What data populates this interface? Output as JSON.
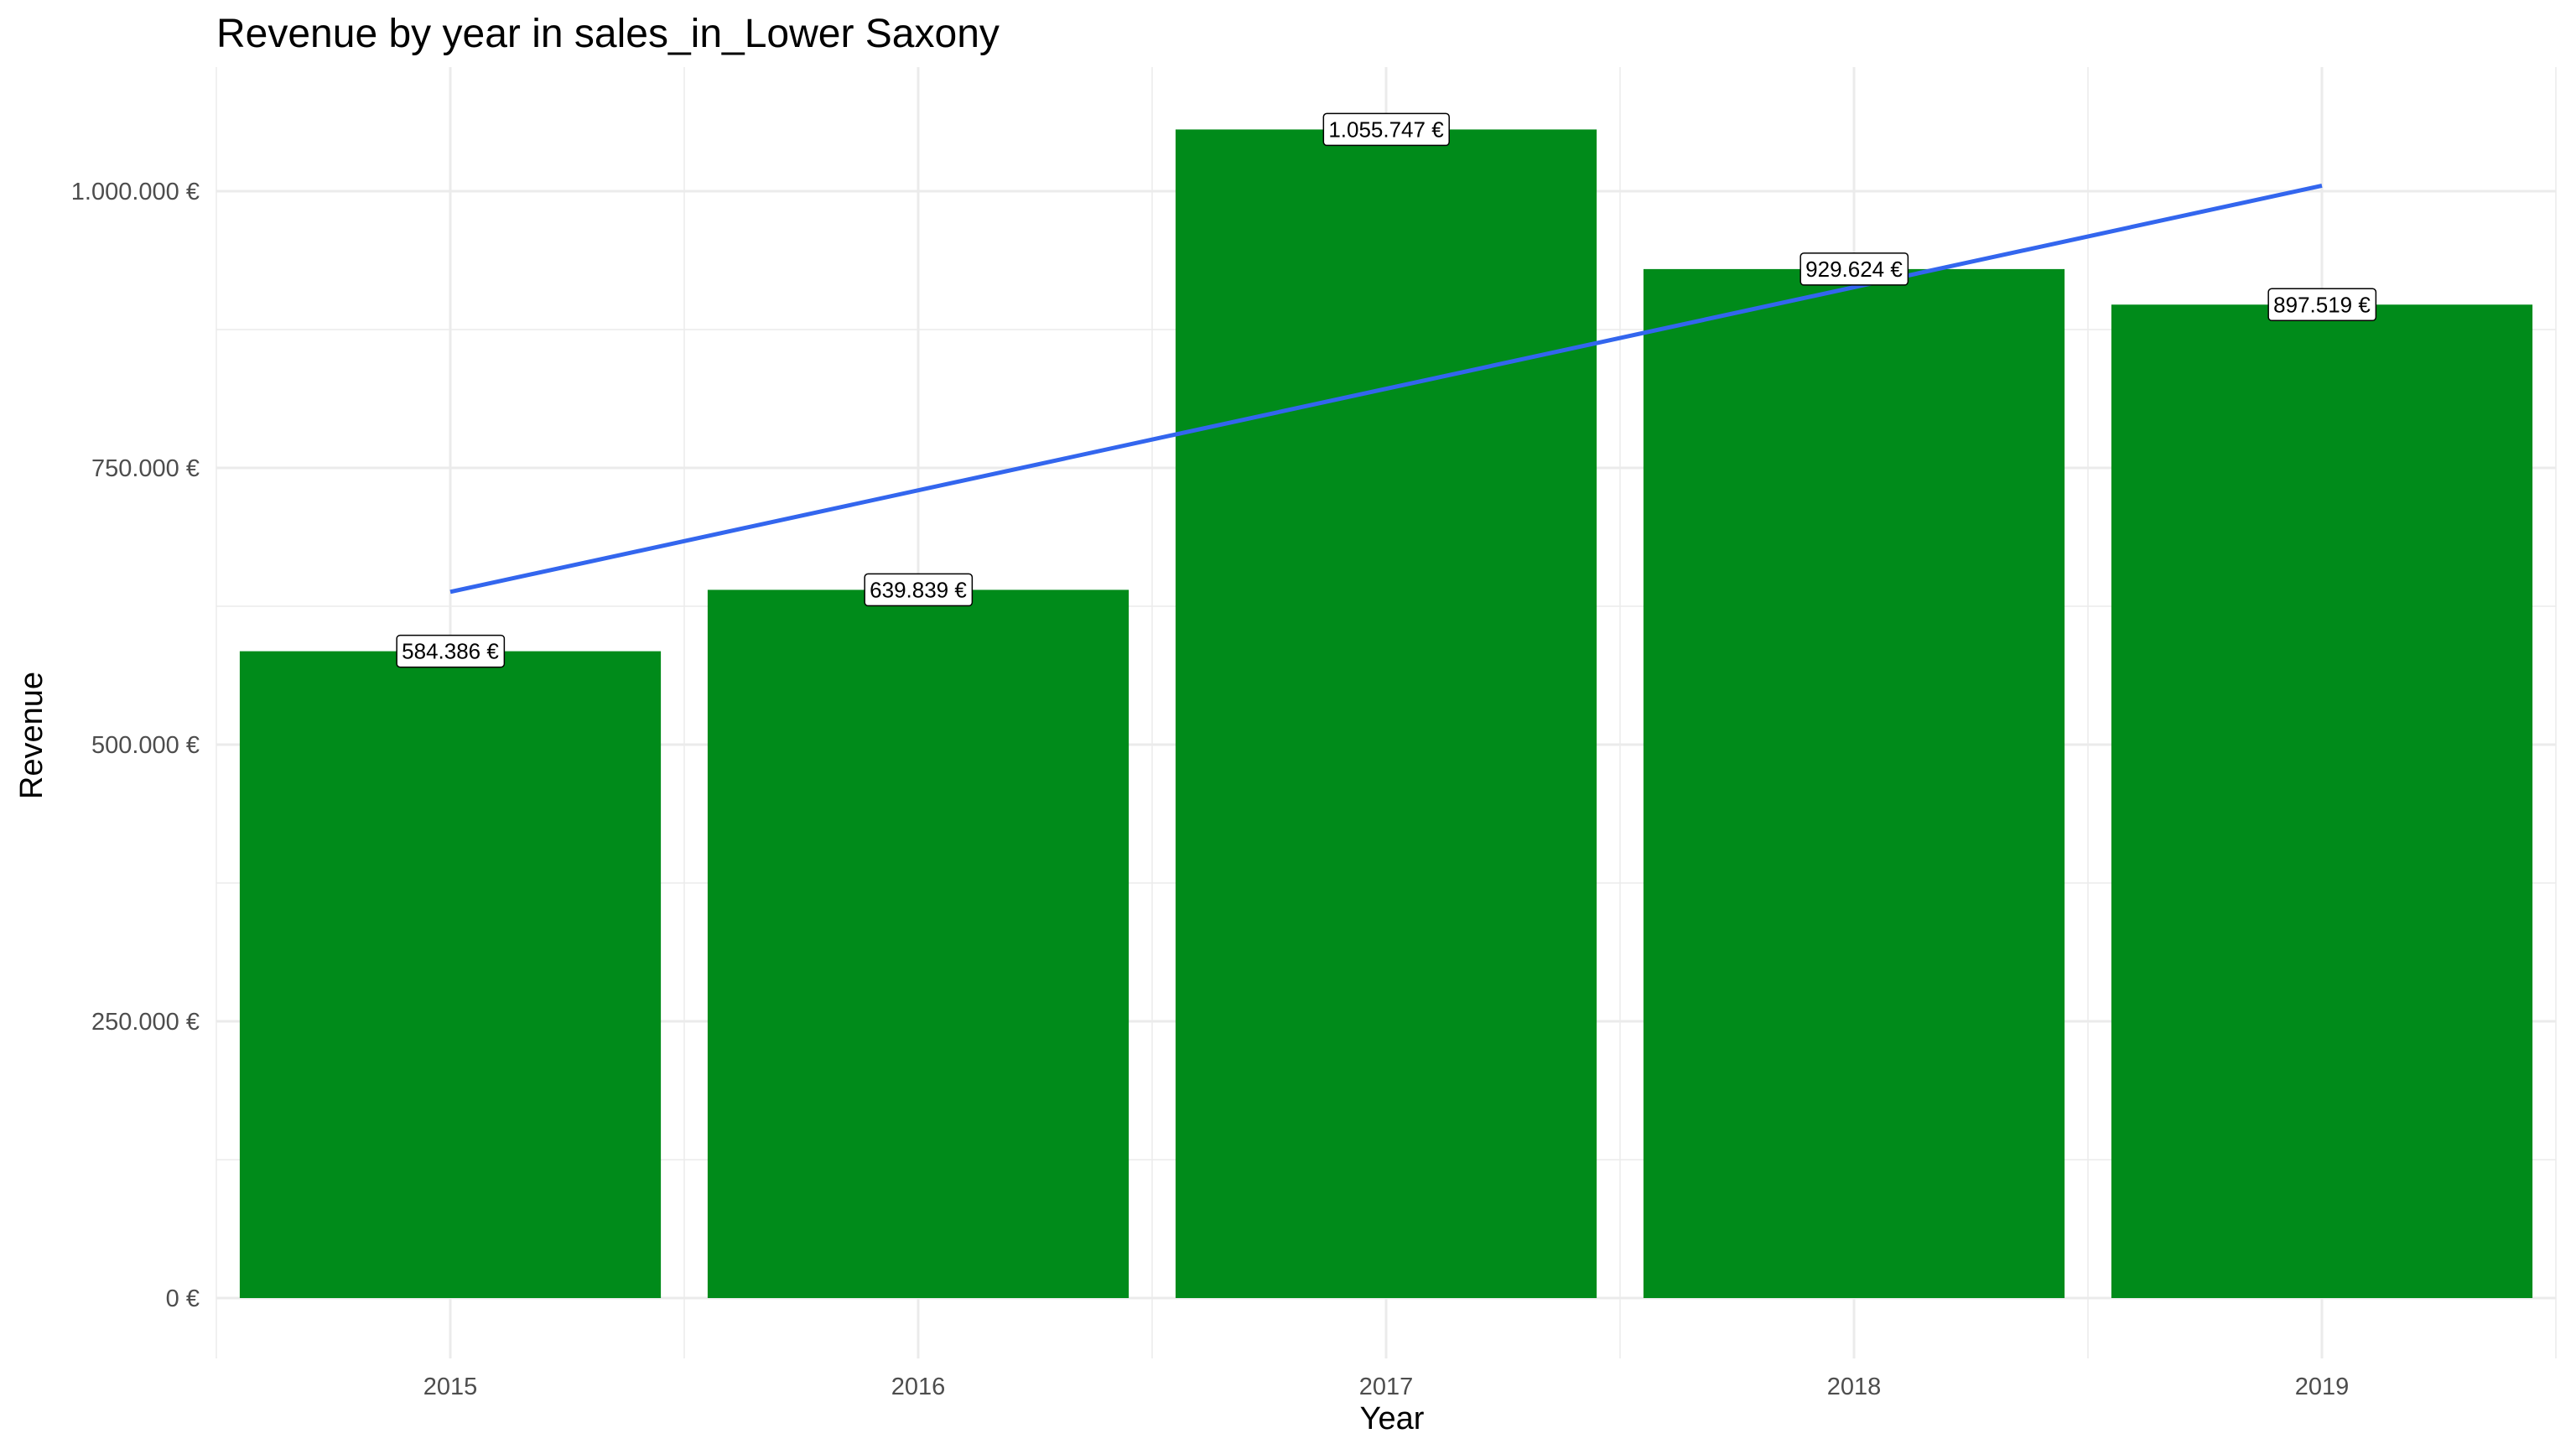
{
  "chart_data": {
    "type": "bar",
    "title": "Revenue by year in sales_in_Lower Saxony",
    "xlabel": "Year",
    "ylabel": "Revenue",
    "categories": [
      "2015",
      "2016",
      "2017",
      "2018",
      "2019"
    ],
    "values": [
      584386,
      639839,
      1055747,
      929624,
      897519
    ],
    "data_labels": [
      "584.386 €",
      "639.839 €",
      "1.055.747 €",
      "929.624 €",
      "897.519 €"
    ],
    "ylim": [
      0,
      1100000
    ],
    "yticks": [
      0,
      250000,
      500000,
      750000,
      1000000
    ],
    "ytick_labels": [
      "0 €",
      "250.000 €",
      "500.000 €",
      "750.000 €",
      "1.000.000 €"
    ],
    "grid": true,
    "trend_line": {
      "x": [
        "2015",
        "2019"
      ],
      "y": [
        638000,
        1005000
      ]
    },
    "colors": {
      "bar": "#008b1a",
      "trend": "#3366ee",
      "grid": "#ebebeb"
    }
  }
}
